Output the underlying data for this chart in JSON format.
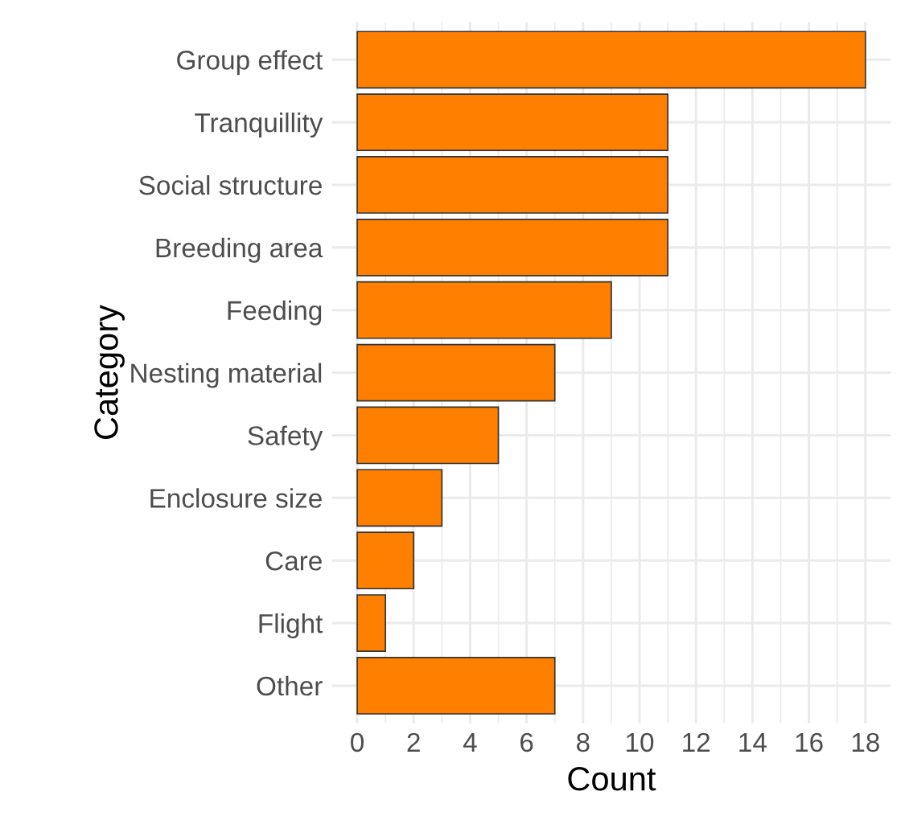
{
  "chart_data": {
    "type": "bar",
    "orientation": "horizontal",
    "xlabel": "Count",
    "ylabel": "Category",
    "categories": [
      "Group effect",
      "Tranquillity",
      "Social structure",
      "Breeding area",
      "Feeding",
      "Nesting material",
      "Safety",
      "Enclosure size",
      "Care",
      "Flight",
      "Other"
    ],
    "values": [
      18,
      11,
      11,
      11,
      9,
      7,
      5,
      3,
      2,
      1,
      7
    ],
    "color": "#ff7f00",
    "xlim": [
      -0.9,
      18.9
    ],
    "xticks": [
      0,
      2,
      4,
      6,
      8,
      10,
      12,
      14,
      16,
      18
    ],
    "grid": true
  }
}
